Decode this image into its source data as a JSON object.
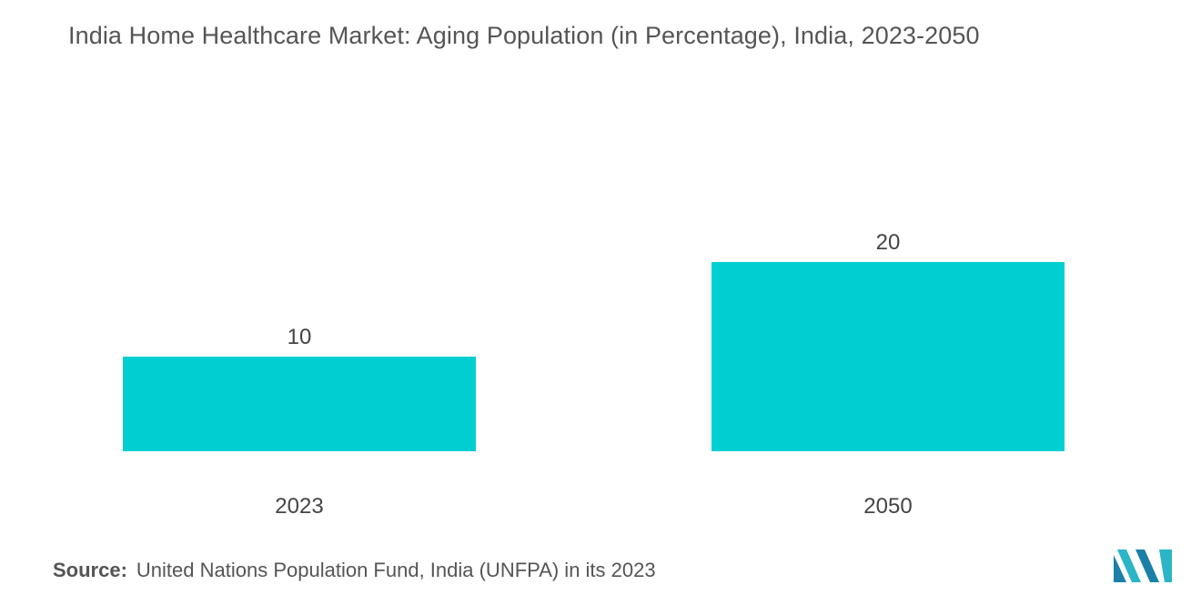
{
  "chart_data": {
    "type": "bar",
    "title": "India Home Healthcare Market: Aging Population (in Percentage), India, 2023-2050",
    "categories": [
      "2023",
      "2050"
    ],
    "values": [
      10,
      20
    ],
    "data_labels": [
      "10",
      "20"
    ],
    "xlabel": "",
    "ylabel": "",
    "ylim": [
      0,
      40
    ],
    "grid": false,
    "legend": "none",
    "bar_color": "#00CED1"
  },
  "source": {
    "label": "Source:",
    "text": "United Nations Population Fund, India (UNFPA) in its 2023"
  },
  "logo": {
    "icon": "mordor-intelligence-logo-icon",
    "colors": [
      "#1B7FA8",
      "#2BB5C7"
    ]
  }
}
